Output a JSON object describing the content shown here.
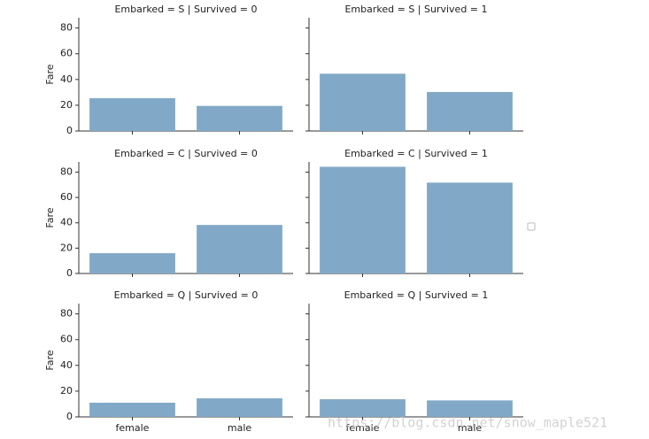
{
  "chart_data": [
    {
      "type": "bar",
      "title": "Embarked = S | Survived = 0",
      "ylabel": "Fare",
      "categories": [
        null,
        null
      ],
      "values": [
        25.5,
        19.5
      ],
      "color": "#81a9c7",
      "ylim": [
        0,
        88
      ],
      "yticks": [
        0,
        20,
        40,
        60,
        80
      ],
      "ytick_labels": true
    },
    {
      "type": "bar",
      "title": "Embarked = S | Survived = 1",
      "categories": [
        null,
        null
      ],
      "values": [
        44.5,
        30.3
      ],
      "color": "#81a9c7",
      "ylim": [
        0,
        88
      ],
      "yticks": [
        0,
        20,
        40,
        60,
        80
      ],
      "ytick_labels": false
    },
    {
      "type": "bar",
      "title": "Embarked = C | Survived = 0",
      "ylabel": "Fare",
      "categories": [
        null,
        null
      ],
      "values": [
        16,
        38.3
      ],
      "color": "#81a9c7",
      "ylim": [
        0,
        88
      ],
      "yticks": [
        0,
        20,
        40,
        60,
        80
      ],
      "ytick_labels": true
    },
    {
      "type": "bar",
      "title": "Embarked = C | Survived = 1",
      "categories": [
        null,
        null
      ],
      "values": [
        84.2,
        71.7
      ],
      "color": "#81a9c7",
      "ylim": [
        0,
        88
      ],
      "yticks": [
        0,
        20,
        40,
        60,
        80
      ],
      "ytick_labels": false
    },
    {
      "type": "bar",
      "title": "Embarked = Q | Survived = 0",
      "ylabel": "Fare",
      "categories": [
        "female",
        "male"
      ],
      "values": [
        11,
        14.4
      ],
      "color": "#81a9c7",
      "ylim": [
        0,
        88
      ],
      "yticks": [
        0,
        20,
        40,
        60,
        80
      ],
      "ytick_labels": true
    },
    {
      "type": "bar",
      "title": "Embarked = Q | Survived = 1",
      "categories": [
        "female",
        "male"
      ],
      "values": [
        13.7,
        12.8
      ],
      "color": "#81a9c7",
      "ylim": [
        0,
        88
      ],
      "yticks": [
        0,
        20,
        40,
        60,
        80
      ],
      "ytick_labels": false
    }
  ],
  "watermark": "https://blog.csdn.net/snow_maple521"
}
